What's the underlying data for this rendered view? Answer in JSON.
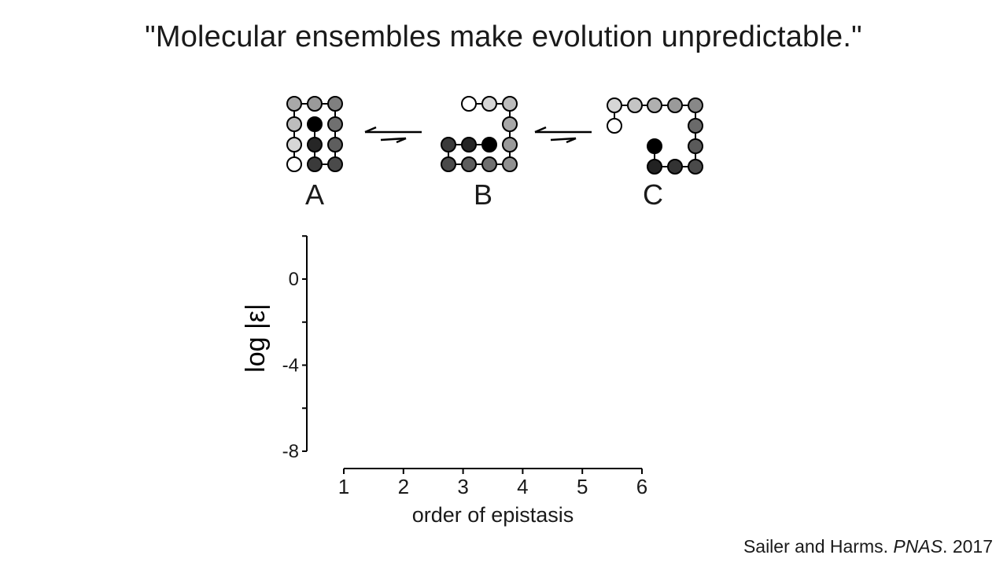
{
  "slide": {
    "title": "\"Molecular ensembles make evolution unpredictable.\"",
    "citation": {
      "authors": "Sailer and Harms.",
      "journal": "PNAS",
      "year": ". 2017"
    }
  },
  "conformations": [
    {
      "label": "A"
    },
    {
      "label": "B"
    },
    {
      "label": "C"
    }
  ],
  "chart_data": {
    "type": "scatter",
    "title": "",
    "xlabel": "order of epistasis",
    "ylabel": "log |ε|",
    "xlim": [
      1,
      6
    ],
    "ylim": [
      -8,
      2
    ],
    "xticks": [
      1,
      2,
      3,
      4,
      5,
      6
    ],
    "yticks": [
      0,
      -4,
      -8
    ],
    "grid": false,
    "series": []
  }
}
